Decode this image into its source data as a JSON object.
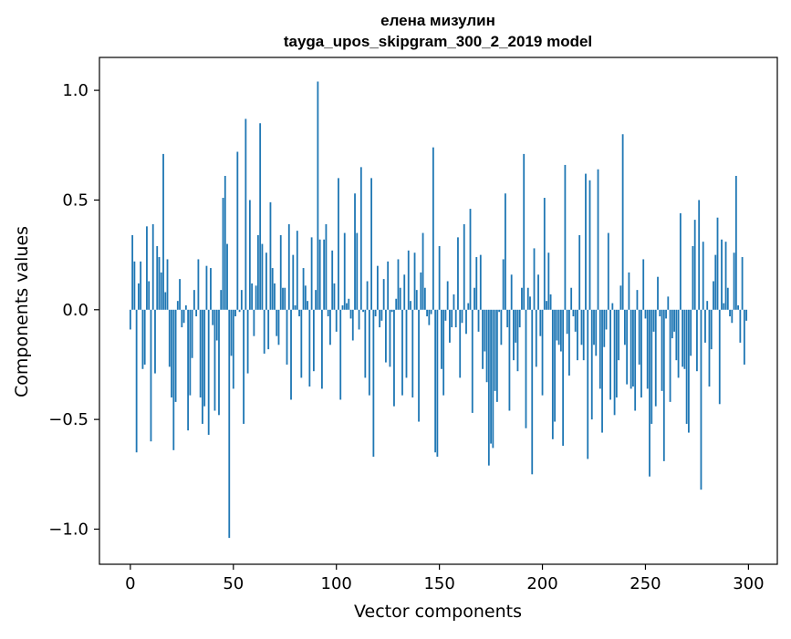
{
  "chart_data": {
    "type": "bar",
    "title": "елена мизулин",
    "subtitle": "tayga_upos_skipgram_300_2_2019 model",
    "xlabel": "Vector components",
    "ylabel": "Components values",
    "xlim": [
      -15,
      314
    ],
    "ylim": [
      -1.16,
      1.15
    ],
    "x_ticks": [
      0,
      50,
      100,
      150,
      200,
      250,
      300
    ],
    "y_ticks": [
      -1.0,
      -0.5,
      0.0,
      0.5,
      1.0
    ],
    "y_tick_labels": [
      "−1.0",
      "−0.5",
      "0.0",
      "0.5",
      "1.0"
    ],
    "grid": false,
    "bar_color": "#1f77b4",
    "x_start": 0,
    "values": [
      -0.09,
      0.34,
      0.22,
      -0.65,
      0.12,
      0.22,
      -0.27,
      -0.25,
      0.38,
      0.13,
      -0.6,
      0.39,
      -0.29,
      0.29,
      0.24,
      0.17,
      0.71,
      0.08,
      0.23,
      -0.26,
      -0.4,
      -0.64,
      -0.42,
      0.04,
      0.14,
      -0.08,
      -0.06,
      0.02,
      -0.55,
      -0.39,
      -0.22,
      0.09,
      -0.03,
      0.23,
      -0.4,
      -0.52,
      -0.44,
      0.2,
      -0.57,
      0.19,
      -0.07,
      -0.46,
      -0.14,
      -0.48,
      0.09,
      0.51,
      0.61,
      0.3,
      -1.04,
      -0.21,
      -0.36,
      -0.03,
      0.72,
      -0.01,
      0.09,
      -0.52,
      0.87,
      -0.29,
      0.5,
      0.12,
      -0.12,
      0.11,
      0.34,
      0.85,
      0.3,
      -0.2,
      0.26,
      -0.18,
      0.49,
      0.19,
      0.12,
      -0.12,
      -0.16,
      0.34,
      0.1,
      0.1,
      -0.25,
      0.39,
      -0.41,
      0.25,
      0.02,
      0.36,
      -0.03,
      -0.31,
      0.19,
      0.11,
      0.04,
      -0.35,
      0.33,
      -0.28,
      0.09,
      1.04,
      0.32,
      -0.36,
      0.32,
      0.39,
      -0.03,
      -0.16,
      0.27,
      0.12,
      -0.1,
      0.6,
      -0.41,
      0.02,
      0.35,
      0.03,
      0.05,
      -0.04,
      -0.14,
      0.53,
      0.35,
      -0.09,
      0.65,
      -0.01,
      -0.31,
      0.13,
      -0.39,
      0.6,
      -0.67,
      -0.03,
      0.2,
      -0.08,
      -0.05,
      0.14,
      -0.24,
      0.22,
      -0.26,
      -0.01,
      -0.44,
      0.05,
      0.23,
      0.1,
      -0.39,
      0.16,
      -0.31,
      0.27,
      0.04,
      -0.4,
      0.26,
      0.09,
      -0.51,
      0.17,
      0.35,
      0.1,
      -0.03,
      -0.07,
      -0.02,
      0.74,
      -0.65,
      -0.67,
      0.29,
      -0.27,
      -0.39,
      -0.05,
      0.13,
      -0.15,
      -0.08,
      0.07,
      -0.08,
      0.33,
      -0.31,
      -0.06,
      0.39,
      -0.11,
      0.03,
      0.46,
      -0.47,
      0.1,
      0.24,
      -0.1,
      0.25,
      -0.27,
      -0.19,
      -0.33,
      -0.71,
      -0.61,
      -0.63,
      -0.37,
      -0.42,
      -0.01,
      -0.16,
      0.23,
      0.53,
      -0.08,
      -0.46,
      0.16,
      -0.23,
      -0.15,
      -0.28,
      -0.08,
      0.1,
      0.71,
      -0.54,
      0.1,
      0.06,
      -0.75,
      0.28,
      -0.26,
      0.16,
      -0.12,
      -0.39,
      0.51,
      0.04,
      0.26,
      0.07,
      -0.59,
      -0.51,
      -0.14,
      -0.16,
      -0.19,
      -0.62,
      0.66,
      -0.11,
      -0.3,
      0.1,
      -0.03,
      -0.1,
      -0.23,
      0.34,
      -0.16,
      -0.23,
      0.62,
      -0.68,
      0.59,
      -0.5,
      -0.16,
      -0.21,
      0.64,
      -0.36,
      -0.56,
      -0.17,
      -0.09,
      0.35,
      -0.41,
      0.03,
      -0.48,
      -0.4,
      -0.23,
      0.11,
      0.8,
      -0.16,
      -0.34,
      0.17,
      -0.36,
      -0.35,
      -0.46,
      0.09,
      -0.25,
      -0.4,
      0.23,
      -0.04,
      -0.36,
      -0.76,
      -0.52,
      -0.1,
      -0.44,
      0.15,
      -0.03,
      -0.37,
      -0.69,
      -0.04,
      0.06,
      -0.42,
      -0.13,
      -0.1,
      -0.23,
      -0.31,
      0.44,
      -0.26,
      -0.27,
      -0.52,
      -0.56,
      -0.21,
      0.29,
      0.41,
      -0.28,
      0.5,
      -0.82,
      0.31,
      -0.15,
      0.04,
      -0.35,
      -0.18,
      0.13,
      0.25,
      0.42,
      -0.43,
      0.32,
      0.03,
      0.31,
      0.1,
      -0.03,
      -0.06,
      0.26,
      0.61,
      0.02,
      -0.15,
      0.24,
      -0.25,
      -0.05
    ]
  }
}
